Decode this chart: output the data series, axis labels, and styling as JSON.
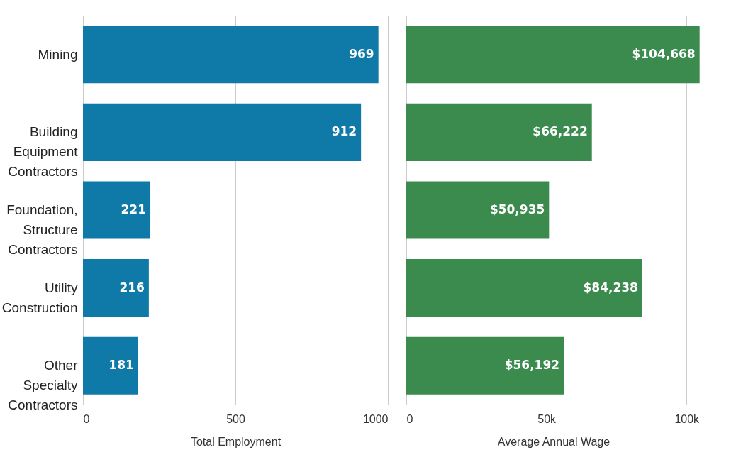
{
  "chart_data": [
    {
      "type": "bar",
      "orientation": "horizontal",
      "categories": [
        "Mining",
        "Building Equipment Contractors",
        "Foundation, Structure Contractors",
        "Utility Construction",
        "Other Specialty Contractors"
      ],
      "values": [
        969,
        912,
        221,
        216,
        181
      ],
      "color": "#0f79a8",
      "xlim": [
        0,
        1000
      ],
      "xticks": [
        0,
        500,
        1000
      ],
      "xlabel": "Total Employment",
      "grid": "x",
      "data_labels": true
    },
    {
      "type": "bar",
      "orientation": "horizontal",
      "categories": [
        null,
        null,
        null,
        null,
        null
      ],
      "values": [
        104668,
        66222,
        50935,
        84238,
        56192
      ],
      "value_labels": [
        "$104,668",
        "$66,222",
        "$50,935",
        "$84,238",
        "$56,192"
      ],
      "color": "#3b8a4e",
      "xlim": [
        0,
        105000
      ],
      "xticks": [
        {
          "value": 0,
          "label": "0"
        },
        {
          "value": 50000,
          "label": "50k"
        },
        {
          "value": 100000,
          "label": "100k"
        }
      ],
      "xlabel": "Average Annual Wage",
      "grid": "x",
      "tick_labels": "x"
    }
  ]
}
